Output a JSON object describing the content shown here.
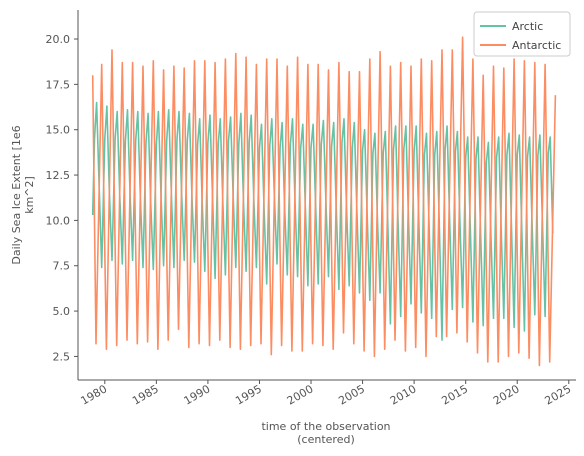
{
  "chart_data": {
    "type": "line",
    "xlabel_line1": "time of the observation",
    "xlabel_line2": "(centered)",
    "ylabel_line1": "Daily Sea Ice Extent [1e6",
    "ylabel_line2": "km^2]",
    "xlim": [
      1977.4,
      2025.7
    ],
    "ylim": [
      1.2,
      21.6
    ],
    "x_ticks": [
      1980,
      1985,
      1990,
      1995,
      2000,
      2005,
      2010,
      2015,
      2020,
      2025
    ],
    "x_tick_labels": [
      "1980",
      "1985",
      "1990",
      "1995",
      "2000",
      "2005",
      "2010",
      "2015",
      "2020",
      "2025"
    ],
    "y_ticks": [
      2.5,
      5.0,
      7.5,
      10.0,
      12.5,
      15.0,
      17.5,
      20.0
    ],
    "y_tick_labels": [
      "2.5",
      "5.0",
      "7.5",
      "10.0",
      "12.5",
      "15.0",
      "17.5",
      "20.0"
    ],
    "grid": false,
    "legend_position": "top-right",
    "series": [
      {
        "name": "Arctic",
        "color": "#66c2a5",
        "x": [
          1978.83,
          1979.0,
          1979.2,
          1979.45,
          1979.7,
          1980.0,
          1980.2,
          1980.45,
          1980.7,
          1981.0,
          1981.2,
          1981.45,
          1981.7,
          1982.0,
          1982.2,
          1982.45,
          1982.7,
          1983.0,
          1983.2,
          1983.45,
          1983.7,
          1984.0,
          1984.2,
          1984.45,
          1984.7,
          1985.0,
          1985.2,
          1985.45,
          1985.7,
          1986.0,
          1986.2,
          1986.45,
          1986.7,
          1987.0,
          1987.2,
          1987.45,
          1987.7,
          1988.0,
          1988.2,
          1988.45,
          1988.7,
          1989.0,
          1989.2,
          1989.45,
          1989.7,
          1990.0,
          1990.2,
          1990.45,
          1990.7,
          1991.0,
          1991.2,
          1991.45,
          1991.7,
          1992.0,
          1992.2,
          1992.45,
          1992.7,
          1993.0,
          1993.2,
          1993.45,
          1993.7,
          1994.0,
          1994.2,
          1994.45,
          1994.7,
          1995.0,
          1995.2,
          1995.45,
          1995.7,
          1996.0,
          1996.2,
          1996.45,
          1996.7,
          1997.0,
          1997.2,
          1997.45,
          1997.7,
          1998.0,
          1998.2,
          1998.45,
          1998.7,
          1999.0,
          1999.2,
          1999.45,
          1999.7,
          2000.0,
          2000.2,
          2000.45,
          2000.7,
          2001.0,
          2001.2,
          2001.45,
          2001.7,
          2002.0,
          2002.2,
          2002.45,
          2002.7,
          2003.0,
          2003.2,
          2003.45,
          2003.7,
          2004.0,
          2004.2,
          2004.45,
          2004.7,
          2005.0,
          2005.2,
          2005.45,
          2005.7,
          2006.0,
          2006.2,
          2006.45,
          2006.7,
          2007.0,
          2007.2,
          2007.45,
          2007.7,
          2008.0,
          2008.2,
          2008.45,
          2008.7,
          2009.0,
          2009.2,
          2009.45,
          2009.7,
          2010.0,
          2010.2,
          2010.45,
          2010.7,
          2011.0,
          2011.2,
          2011.45,
          2011.7,
          2012.0,
          2012.2,
          2012.45,
          2012.7,
          2013.0,
          2013.2,
          2013.45,
          2013.7,
          2014.0,
          2014.2,
          2014.45,
          2014.7,
          2015.0,
          2015.2,
          2015.45,
          2015.7,
          2016.0,
          2016.2,
          2016.45,
          2016.7,
          2017.0,
          2017.2,
          2017.45,
          2017.7,
          2018.0,
          2018.2,
          2018.45,
          2018.7,
          2019.0,
          2019.2,
          2019.45,
          2019.7,
          2020.0,
          2020.2,
          2020.45,
          2020.7,
          2021.0,
          2021.2,
          2021.45,
          2021.7,
          2022.0,
          2022.2,
          2022.45,
          2022.7,
          2023.0,
          2023.2,
          2023.45
        ],
        "y": [
          10.3,
          14.5,
          16.5,
          12.0,
          7.4,
          14.5,
          16.3,
          11.5,
          7.8,
          14.5,
          16.0,
          11.3,
          7.6,
          14.4,
          16.1,
          11.4,
          7.8,
          14.4,
          16.0,
          11.2,
          7.4,
          14.3,
          15.9,
          11.0,
          7.3,
          14.2,
          16.0,
          11.4,
          7.5,
          14.4,
          16.1,
          11.6,
          7.4,
          14.5,
          16.0,
          11.5,
          7.8,
          14.4,
          15.9,
          11.4,
          7.7,
          14.2,
          15.6,
          11.0,
          7.2,
          14.3,
          15.8,
          11.2,
          6.8,
          14.2,
          15.6,
          10.9,
          7.0,
          14.4,
          15.7,
          11.3,
          7.4,
          14.2,
          15.9,
          11.0,
          7.2,
          14.3,
          15.8,
          11.2,
          7.4,
          14.0,
          15.3,
          10.6,
          6.5,
          14.1,
          15.6,
          11.3,
          7.6,
          14.0,
          15.4,
          10.6,
          7.0,
          14.2,
          15.6,
          11.1,
          6.9,
          14.0,
          15.3,
          10.8,
          6.4,
          14.0,
          15.3,
          10.7,
          6.5,
          14.2,
          15.5,
          10.9,
          6.9,
          14.1,
          15.4,
          10.6,
          6.2,
          14.3,
          15.6,
          10.6,
          6.4,
          14.0,
          15.4,
          10.5,
          6.0,
          13.9,
          15.0,
          10.3,
          5.6,
          13.7,
          14.8,
          10.0,
          6.0,
          13.7,
          14.9,
          9.8,
          4.3,
          13.9,
          15.2,
          9.8,
          4.7,
          13.9,
          15.2,
          10.1,
          5.4,
          13.8,
          15.2,
          10.0,
          4.9,
          13.6,
          14.8,
          9.7,
          4.6,
          13.6,
          14.9,
          9.6,
          3.4,
          13.9,
          15.2,
          9.9,
          5.1,
          13.8,
          14.9,
          9.8,
          5.2,
          13.5,
          14.6,
          9.6,
          4.4,
          13.4,
          14.6,
          9.3,
          4.2,
          13.2,
          14.3,
          9.2,
          4.6,
          13.5,
          14.6,
          9.5,
          4.6,
          13.6,
          14.8,
          9.4,
          4.1,
          13.6,
          14.7,
          9.3,
          3.9,
          13.5,
          14.6,
          9.6,
          4.8,
          13.6,
          14.7,
          9.8,
          4.7,
          13.7,
          14.6,
          9.3
        ]
      },
      {
        "name": "Antarctic",
        "color": "#fc8d62",
        "x": [
          1978.83,
          1979.15,
          1979.7,
          1980.15,
          1980.7,
          1981.15,
          1981.7,
          1982.15,
          1982.7,
          1983.15,
          1983.7,
          1984.15,
          1984.7,
          1985.15,
          1985.7,
          1986.15,
          1986.7,
          1987.15,
          1987.7,
          1988.15,
          1988.7,
          1989.15,
          1989.7,
          1990.15,
          1990.7,
          1991.15,
          1991.7,
          1992.15,
          1992.7,
          1993.15,
          1993.7,
          1994.15,
          1994.7,
          1995.15,
          1995.7,
          1996.15,
          1996.7,
          1997.15,
          1997.7,
          1998.15,
          1998.7,
          1999.15,
          1999.7,
          2000.15,
          2000.7,
          2001.15,
          2001.7,
          2002.15,
          2002.7,
          2003.15,
          2003.7,
          2004.15,
          2004.7,
          2005.15,
          2005.7,
          2006.15,
          2006.7,
          2007.15,
          2007.7,
          2008.15,
          2008.7,
          2009.15,
          2009.7,
          2010.15,
          2010.7,
          2011.15,
          2011.7,
          2012.15,
          2012.7,
          2013.15,
          2013.7,
          2014.15,
          2014.7,
          2015.15,
          2015.7,
          2016.15,
          2016.7,
          2017.15,
          2017.7,
          2018.15,
          2018.7,
          2019.15,
          2019.7,
          2020.15,
          2020.7,
          2021.15,
          2021.7,
          2022.15,
          2022.7,
          2023.15,
          2023.7
        ],
        "y": [
          18.0,
          3.2,
          18.6,
          2.9,
          19.4,
          3.1,
          18.7,
          3.4,
          18.7,
          3.2,
          18.5,
          3.3,
          18.8,
          2.9,
          18.3,
          3.4,
          18.5,
          4.0,
          18.4,
          3.0,
          18.8,
          3.2,
          18.8,
          3.1,
          18.7,
          3.4,
          18.9,
          3.0,
          19.2,
          2.9,
          19.0,
          3.1,
          18.6,
          3.2,
          18.9,
          2.6,
          18.9,
          3.1,
          18.5,
          2.8,
          19.0,
          2.8,
          18.6,
          3.2,
          18.6,
          3.1,
          18.3,
          2.9,
          18.7,
          3.8,
          18.2,
          3.2,
          18.2,
          2.8,
          18.9,
          2.5,
          19.3,
          2.9,
          18.5,
          3.4,
          18.7,
          2.8,
          18.5,
          3.0,
          18.9,
          2.5,
          18.8,
          3.6,
          19.4,
          3.6,
          19.4,
          3.8,
          20.1,
          3.3,
          18.9,
          2.7,
          18.0,
          2.2,
          18.5,
          2.2,
          18.4,
          2.5,
          18.9,
          2.7,
          18.8,
          2.4,
          18.7,
          2.0,
          18.6,
          2.2,
          16.9
        ]
      }
    ]
  }
}
